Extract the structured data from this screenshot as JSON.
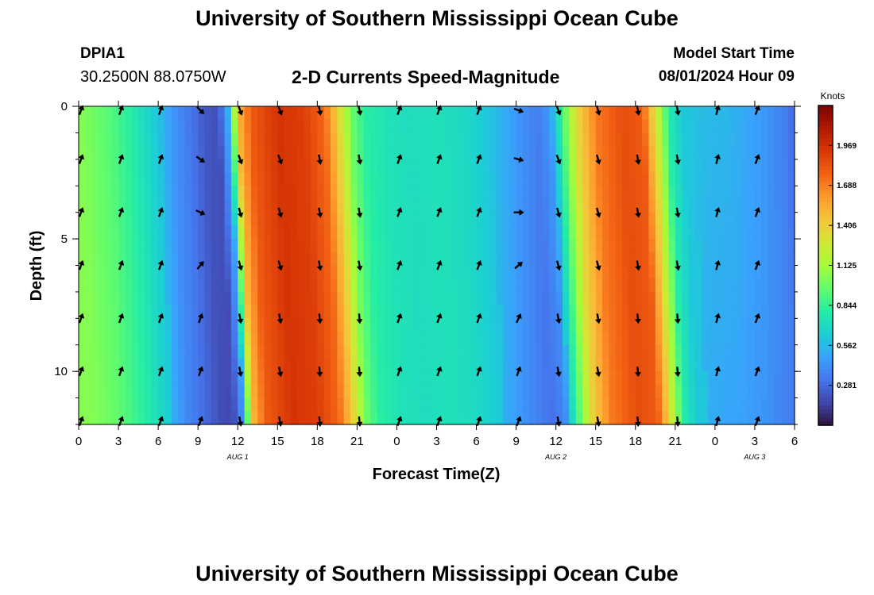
{
  "header": {
    "main_title": "University of Southern Mississippi Ocean Cube",
    "station_id": "DPIA1",
    "coordinates": "30.2500N  88.0750W",
    "subtitle": "2-D Currents Speed-Magnitude",
    "model_start_label": "Model Start Time",
    "model_start_value": "08/01/2024 Hour 09"
  },
  "footer": {
    "repeated_title": "University of Southern Mississippi Ocean Cube"
  },
  "colors": {
    "scale": [
      "#30123b",
      "#4145ab",
      "#4675ed",
      "#39a2fc",
      "#1bcfd4",
      "#24eca6",
      "#61fc6c",
      "#a4fc3b",
      "#d1e834",
      "#f3c63a",
      "#fe9b2d",
      "#f36315",
      "#d93806",
      "#b11901",
      "#7a0403"
    ],
    "arrow": "#000000",
    "axis": "#000000"
  },
  "chart_data": {
    "type": "heatmap",
    "title": "2-D Currents Speed-Magnitude",
    "xlabel": "Forecast Time(Z)",
    "ylabel": "Depth (ft)",
    "x_hours": [
      0,
      48
    ],
    "xlim": [
      0,
      54
    ],
    "ylim": [
      0,
      12
    ],
    "x_tick_hours": [
      0,
      3,
      6,
      9,
      12,
      15,
      18,
      21,
      24,
      27,
      30,
      33,
      36,
      39,
      42,
      45,
      48,
      51,
      54
    ],
    "x_tick_labels": [
      "0",
      "3",
      "6",
      "9",
      "12",
      "15",
      "18",
      "21",
      "0",
      "3",
      "6",
      "9",
      "12",
      "15",
      "18",
      "21",
      "0",
      "3",
      "6"
    ],
    "y_ticks": [
      0,
      5,
      10
    ],
    "y_tick_labels": [
      "0",
      "5",
      "10"
    ],
    "y_minor_ticks": [
      0,
      1,
      2,
      3,
      4,
      5,
      6,
      7,
      8,
      9,
      10,
      11,
      12
    ],
    "date_labels": [
      {
        "text": "AUG 1",
        "hour": 12
      },
      {
        "text": "AUG 2",
        "hour": 36
      },
      {
        "text": "AUG 3",
        "hour": 51
      }
    ],
    "speed_profile": {
      "hours": [
        0,
        2,
        4,
        6,
        7,
        8.5,
        9.5,
        10.5,
        11.2,
        12,
        13,
        15,
        17,
        18.5,
        19.5,
        20.5,
        21.5,
        23,
        25,
        27,
        29,
        31,
        33,
        34.5,
        35.5,
        36.5,
        37.5,
        39,
        41,
        42.5,
        43.5,
        44.5,
        45.5,
        47,
        49,
        51,
        53,
        54
      ],
      "speeds": [
        1.05,
        0.95,
        0.8,
        0.6,
        0.45,
        0.32,
        0.22,
        0.2,
        0.5,
        1.5,
        1.8,
        1.95,
        1.9,
        1.75,
        1.4,
        1.0,
        0.82,
        0.75,
        0.72,
        0.74,
        0.7,
        0.6,
        0.45,
        0.35,
        0.45,
        0.9,
        1.35,
        1.7,
        1.85,
        1.8,
        1.3,
        0.8,
        0.62,
        0.58,
        0.55,
        0.48,
        0.38,
        0.28
      ],
      "depth_factor_slowdown": 0.13
    },
    "arrow_hours": [
      0,
      3,
      6,
      9,
      12,
      15,
      18,
      21,
      24,
      27,
      30,
      33,
      36,
      39,
      42,
      45,
      48,
      51
    ],
    "arrow_depths_ft": [
      0,
      2,
      4,
      6,
      8,
      10,
      12
    ],
    "arrow_directions_deg": [
      [
        20,
        20,
        20,
        135,
        160,
        160,
        170,
        170,
        20,
        20,
        20,
        110,
        160,
        165,
        170,
        170,
        15,
        20
      ],
      [
        20,
        20,
        20,
        125,
        160,
        160,
        170,
        170,
        20,
        20,
        20,
        105,
        160,
        165,
        170,
        170,
        15,
        20
      ],
      [
        20,
        20,
        20,
        115,
        165,
        165,
        170,
        170,
        20,
        20,
        20,
        90,
        165,
        165,
        170,
        170,
        15,
        20
      ],
      [
        20,
        20,
        20,
        40,
        165,
        165,
        170,
        170,
        20,
        20,
        20,
        50,
        165,
        165,
        170,
        170,
        15,
        20
      ],
      [
        20,
        20,
        20,
        20,
        170,
        170,
        175,
        175,
        20,
        20,
        20,
        25,
        170,
        170,
        175,
        175,
        15,
        20
      ],
      [
        20,
        20,
        20,
        20,
        170,
        170,
        175,
        175,
        20,
        20,
        20,
        20,
        170,
        170,
        175,
        175,
        15,
        20
      ],
      [
        20,
        20,
        20,
        20,
        170,
        170,
        175,
        175,
        20,
        20,
        20,
        20,
        170,
        170,
        175,
        175,
        15,
        20
      ]
    ],
    "colorbar": {
      "title": "Knots",
      "min": 0,
      "max": 2.25,
      "tick_values": [
        0.281,
        0.562,
        0.844,
        1.125,
        1.406,
        1.688,
        1.969
      ],
      "tick_labels": [
        "0.281",
        "0.562",
        "0.844",
        "1.125",
        "1.406",
        "1.688",
        "1.969"
      ]
    }
  }
}
